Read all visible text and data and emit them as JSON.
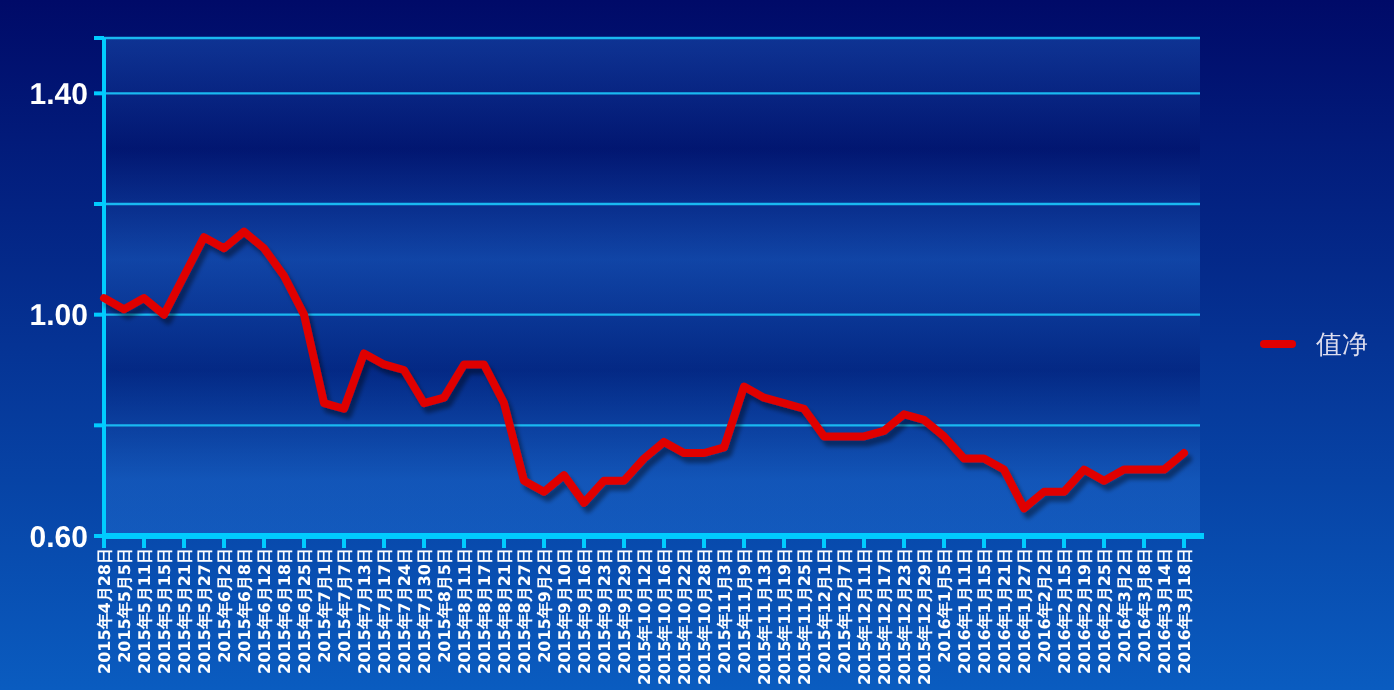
{
  "chart_data": {
    "type": "line",
    "categories": [
      "2015年4月28日",
      "2015年5月5日",
      "2015年5月11日",
      "2015年5月15日",
      "2015年5月21日",
      "2015年5月27日",
      "2015年6月2日",
      "2015年6月8日",
      "2015年6月12日",
      "2015年6月18日",
      "2015年6月25日",
      "2015年7月1日",
      "2015年7月7日",
      "2015年7月13日",
      "2015年7月17日",
      "2015年7月24日",
      "2015年7月30日",
      "2015年8月5日",
      "2015年8月11日",
      "2015年8月17日",
      "2015年8月21日",
      "2015年8月27日",
      "2015年9月2日",
      "2015年9月10日",
      "2015年9月16日",
      "2015年9月23日",
      "2015年9月29日",
      "2015年10月12日",
      "2015年10月16日",
      "2015年10月22日",
      "2015年10月28日",
      "2015年11月3日",
      "2015年11月9日",
      "2015年11月13日",
      "2015年11月19日",
      "2015年11月25日",
      "2015年12月1日",
      "2015年12月7日",
      "2015年12月11日",
      "2015年12月17日",
      "2015年12月23日",
      "2015年12月29日",
      "2016年1月5日",
      "2016年1月11日",
      "2016年1月15日",
      "2016年1月21日",
      "2016年1月27日",
      "2016年2月2日",
      "2016年2月15日",
      "2016年2月19日",
      "2016年2月25日",
      "2016年3月2日",
      "2016年3月8日",
      "2016年3月14日",
      "2016年3月18日"
    ],
    "series": [
      {
        "name": "值净",
        "color": "#e00000",
        "values": [
          1.03,
          1.01,
          1.03,
          1.0,
          1.07,
          1.14,
          1.12,
          1.15,
          1.12,
          1.07,
          1.0,
          0.84,
          0.83,
          0.93,
          0.91,
          0.9,
          0.84,
          0.85,
          0.91,
          0.91,
          0.84,
          0.7,
          0.68,
          0.71,
          0.66,
          0.7,
          0.7,
          0.74,
          0.77,
          0.75,
          0.75,
          0.76,
          0.87,
          0.85,
          0.84,
          0.83,
          0.78,
          0.78,
          0.78,
          0.79,
          0.82,
          0.81,
          0.78,
          0.74,
          0.74,
          0.72,
          0.65,
          0.68,
          0.68,
          0.72,
          0.7,
          0.72,
          0.72,
          0.72,
          0.75
        ]
      }
    ],
    "ylim": [
      0.6,
      1.5
    ],
    "yticks": [
      {
        "value": 0.6,
        "label": "0.60"
      },
      {
        "value": 0.8,
        "label": null
      },
      {
        "value": 1.0,
        "label": "1.00"
      },
      {
        "value": 1.2,
        "label": null
      },
      {
        "value": 1.4,
        "label": "1.40"
      },
      {
        "value": 1.5,
        "label": null
      }
    ],
    "grid": "y",
    "legend": "right",
    "marker": "none",
    "line_style": "solid"
  }
}
